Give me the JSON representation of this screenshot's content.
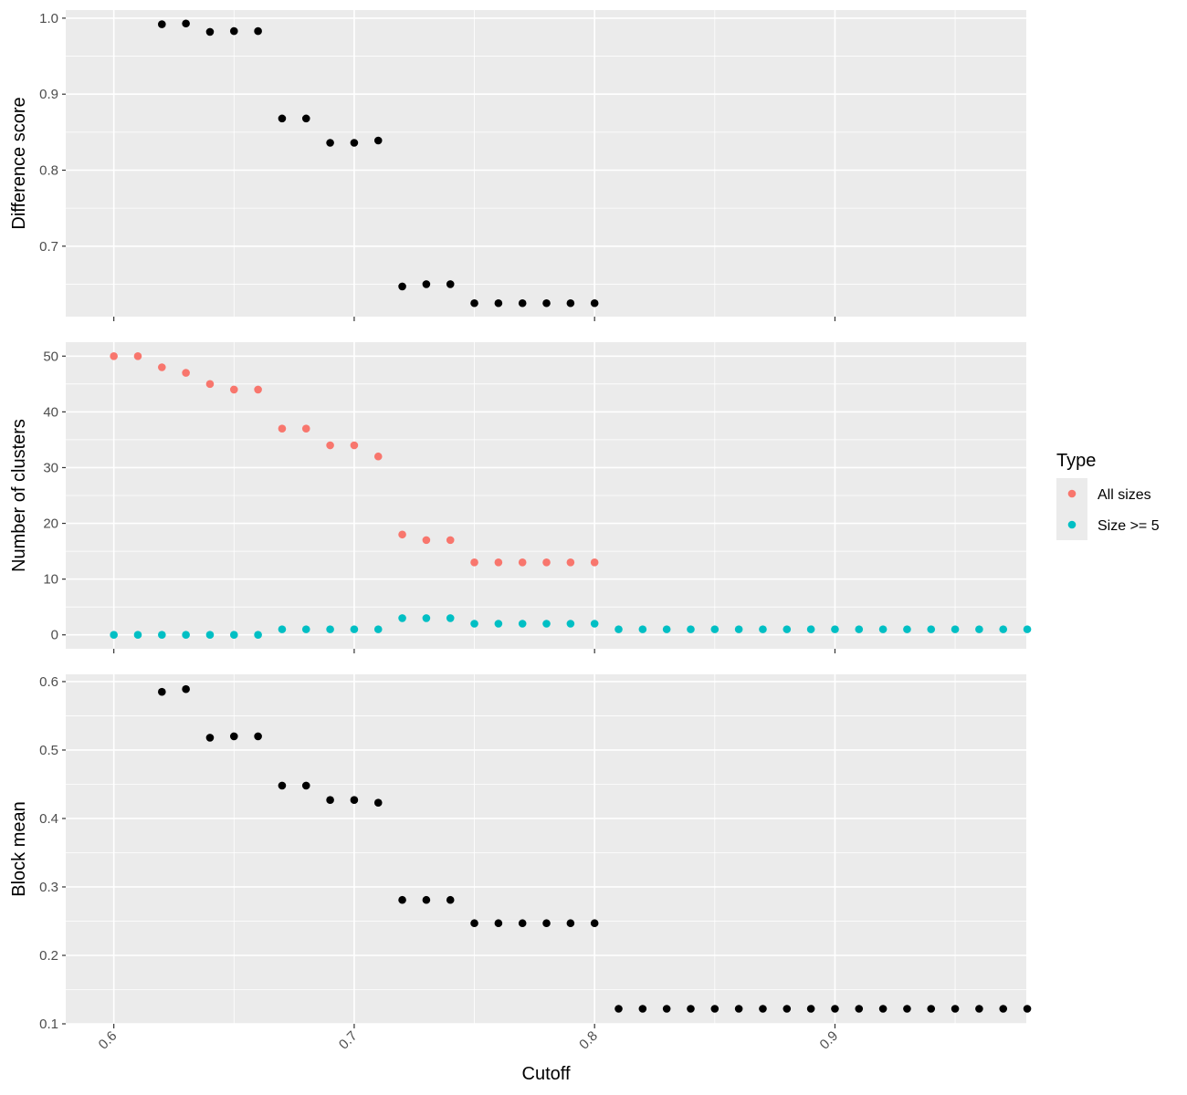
{
  "chart_data": {
    "type": "scatter",
    "x_label": "Cutoff",
    "x_ticks": [
      0.6,
      0.7,
      0.8,
      0.9
    ],
    "x_tick_labels": [
      "0.6",
      "0.7",
      "0.8",
      "0.9"
    ],
    "xlim": [
      0.58,
      0.9796
    ],
    "grid": true,
    "legend": {
      "title": "Type",
      "placement": "right",
      "entries": [
        {
          "label": "All sizes",
          "color": "#F8766D"
        },
        {
          "label": "Size >= 5",
          "color": "#00BFC4"
        }
      ]
    },
    "panels": [
      {
        "ylabel": "Difference score",
        "ylim": [
          0.6073,
          1.0107
        ],
        "y_ticks": [
          0.7,
          0.8,
          0.9,
          1.0
        ],
        "y_tick_labels": [
          "0.7",
          "0.8",
          "0.9",
          "1.0"
        ],
        "series": [
          {
            "color": "#000000",
            "points": [
              [
                0.62,
                0.992
              ],
              [
                0.63,
                0.993
              ],
              [
                0.64,
                0.982
              ],
              [
                0.65,
                0.983
              ],
              [
                0.66,
                0.983
              ],
              [
                0.67,
                0.868
              ],
              [
                0.68,
                0.868
              ],
              [
                0.69,
                0.836
              ],
              [
                0.7,
                0.836
              ],
              [
                0.71,
                0.839
              ],
              [
                0.72,
                0.647
              ],
              [
                0.73,
                0.65
              ],
              [
                0.74,
                0.65
              ],
              [
                0.75,
                0.625
              ],
              [
                0.76,
                0.625
              ],
              [
                0.77,
                0.625
              ],
              [
                0.78,
                0.625
              ],
              [
                0.79,
                0.625
              ],
              [
                0.8,
                0.625
              ]
            ]
          }
        ]
      },
      {
        "ylabel": "Number of clusters",
        "ylim": [
          -2.5,
          52.5
        ],
        "y_ticks": [
          0,
          10,
          20,
          30,
          40,
          50
        ],
        "y_tick_labels": [
          "0",
          "10",
          "20",
          "30",
          "40",
          "50"
        ],
        "series": [
          {
            "name": "All sizes",
            "color": "#F8766D",
            "points": [
              [
                0.6,
                50
              ],
              [
                0.61,
                50
              ],
              [
                0.62,
                48
              ],
              [
                0.63,
                47
              ],
              [
                0.64,
                45
              ],
              [
                0.65,
                44
              ],
              [
                0.66,
                44
              ],
              [
                0.67,
                37
              ],
              [
                0.68,
                37
              ],
              [
                0.69,
                34
              ],
              [
                0.7,
                34
              ],
              [
                0.71,
                32
              ],
              [
                0.72,
                18
              ],
              [
                0.73,
                17
              ],
              [
                0.74,
                17
              ],
              [
                0.75,
                13
              ],
              [
                0.76,
                13
              ],
              [
                0.77,
                13
              ],
              [
                0.78,
                13
              ],
              [
                0.79,
                13
              ],
              [
                0.8,
                13
              ]
            ]
          },
          {
            "name": "Size >= 5",
            "color": "#00BFC4",
            "points": [
              [
                0.6,
                0
              ],
              [
                0.61,
                0
              ],
              [
                0.62,
                0
              ],
              [
                0.63,
                0
              ],
              [
                0.64,
                0
              ],
              [
                0.65,
                0
              ],
              [
                0.66,
                0
              ],
              [
                0.67,
                1
              ],
              [
                0.68,
                1
              ],
              [
                0.69,
                1
              ],
              [
                0.7,
                1
              ],
              [
                0.71,
                1
              ],
              [
                0.72,
                3
              ],
              [
                0.73,
                3
              ],
              [
                0.74,
                3
              ],
              [
                0.75,
                2
              ],
              [
                0.76,
                2
              ],
              [
                0.77,
                2
              ],
              [
                0.78,
                2
              ],
              [
                0.79,
                2
              ],
              [
                0.8,
                2
              ],
              [
                0.81,
                1
              ],
              [
                0.82,
                1
              ],
              [
                0.83,
                1
              ],
              [
                0.84,
                1
              ],
              [
                0.85,
                1
              ],
              [
                0.86,
                1
              ],
              [
                0.87,
                1
              ],
              [
                0.88,
                1
              ],
              [
                0.89,
                1
              ],
              [
                0.9,
                1
              ],
              [
                0.91,
                1
              ],
              [
                0.92,
                1
              ],
              [
                0.93,
                1
              ],
              [
                0.94,
                1
              ],
              [
                0.95,
                1
              ],
              [
                0.96,
                1
              ],
              [
                0.97,
                1
              ],
              [
                0.98,
                1
              ]
            ]
          }
        ]
      },
      {
        "ylabel": "Block mean",
        "ylim": [
          0.1,
          0.6106
        ],
        "y_ticks": [
          0.1,
          0.2,
          0.3,
          0.4,
          0.5,
          0.6
        ],
        "y_tick_labels": [
          "0.1",
          "0.2",
          "0.3",
          "0.4",
          "0.5",
          "0.6"
        ],
        "series": [
          {
            "color": "#000000",
            "points": [
              [
                0.62,
                0.585
              ],
              [
                0.63,
                0.589
              ],
              [
                0.64,
                0.518
              ],
              [
                0.65,
                0.52
              ],
              [
                0.66,
                0.52
              ],
              [
                0.67,
                0.448
              ],
              [
                0.68,
                0.448
              ],
              [
                0.69,
                0.427
              ],
              [
                0.7,
                0.427
              ],
              [
                0.71,
                0.423
              ],
              [
                0.72,
                0.281
              ],
              [
                0.73,
                0.281
              ],
              [
                0.74,
                0.281
              ],
              [
                0.75,
                0.247
              ],
              [
                0.76,
                0.247
              ],
              [
                0.77,
                0.247
              ],
              [
                0.78,
                0.247
              ],
              [
                0.79,
                0.247
              ],
              [
                0.8,
                0.247
              ],
              [
                0.81,
                0.122
              ],
              [
                0.82,
                0.122
              ],
              [
                0.83,
                0.122
              ],
              [
                0.84,
                0.122
              ],
              [
                0.85,
                0.122
              ],
              [
                0.86,
                0.122
              ],
              [
                0.87,
                0.122
              ],
              [
                0.88,
                0.122
              ],
              [
                0.89,
                0.122
              ],
              [
                0.9,
                0.122
              ],
              [
                0.91,
                0.122
              ],
              [
                0.92,
                0.122
              ],
              [
                0.93,
                0.122
              ],
              [
                0.94,
                0.122
              ],
              [
                0.95,
                0.122
              ],
              [
                0.96,
                0.122
              ],
              [
                0.97,
                0.122
              ],
              [
                0.98,
                0.122
              ]
            ]
          }
        ]
      }
    ]
  }
}
